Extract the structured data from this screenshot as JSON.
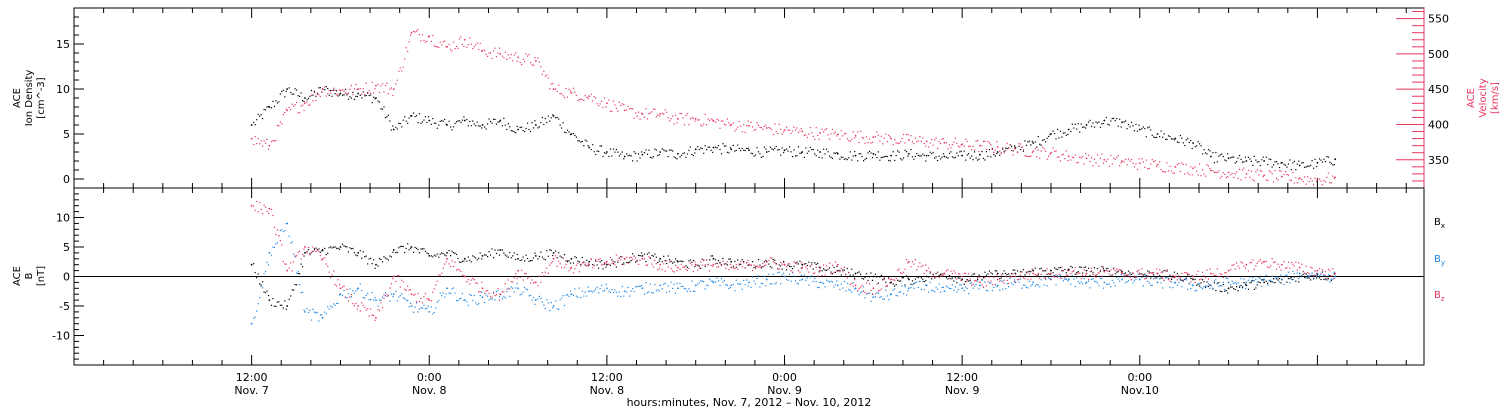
{
  "chart_data": [
    {
      "type": "scatter",
      "panel": "top",
      "ylabel_left": [
        "ACE",
        "Ion Density",
        "[cm^-3]"
      ],
      "ylabel_right": [
        "ACE",
        "Velocity",
        "[km/s]"
      ],
      "ylim_left": [
        -1,
        19
      ],
      "yticks_left": [
        0,
        5,
        10,
        15
      ],
      "ylim_right": [
        310,
        565
      ],
      "yticks_right": [
        350,
        400,
        450,
        500,
        550
      ],
      "colors": {
        "density": "#000000",
        "velocity": "#e8365e"
      },
      "series": [
        {
          "name": "Ion Density",
          "axis": "left",
          "color": "#000000",
          "x": [
            0.0,
            0.05,
            0.1,
            0.15,
            0.2,
            0.25,
            0.3,
            0.35,
            0.4,
            0.45,
            0.5,
            0.55,
            0.6,
            0.65,
            0.7,
            0.75,
            0.8,
            0.85,
            0.9,
            0.95,
            1.0,
            1.05,
            1.1,
            1.15,
            1.2,
            1.25,
            1.3,
            1.35,
            1.4,
            1.45,
            1.5,
            1.55,
            1.6,
            1.65,
            1.7,
            1.75,
            1.8,
            1.85,
            1.9,
            1.95,
            2.0,
            2.05,
            2.1,
            2.15,
            2.2,
            2.25,
            2.3,
            2.35,
            2.4,
            2.45,
            2.5,
            2.55,
            2.6,
            2.65,
            2.7,
            2.75,
            2.8,
            2.85,
            2.9,
            2.95,
            3.0,
            3.05
          ],
          "y": [
            6.0,
            8.0,
            10.0,
            9.0,
            10.0,
            9.5,
            9.5,
            9.0,
            5.5,
            7.0,
            6.5,
            6.0,
            6.5,
            6.0,
            6.5,
            5.5,
            6.0,
            7.0,
            5.0,
            3.5,
            3.0,
            2.5,
            2.7,
            3.0,
            2.8,
            3.3,
            3.5,
            3.3,
            3.2,
            3.0,
            3.2,
            3.0,
            3.0,
            2.8,
            2.6,
            2.8,
            2.6,
            2.8,
            2.6,
            2.5,
            2.6,
            2.7,
            3.0,
            3.5,
            4.0,
            5.0,
            5.5,
            6.0,
            6.5,
            6.3,
            5.5,
            5.0,
            4.5,
            4.0,
            2.5,
            2.3,
            2.0,
            2.0,
            1.8,
            1.5,
            1.8,
            2.2
          ]
        },
        {
          "name": "Velocity",
          "axis": "right",
          "color": "#e8365e",
          "x": [
            0.0,
            0.05,
            0.1,
            0.15,
            0.2,
            0.25,
            0.3,
            0.35,
            0.4,
            0.45,
            0.5,
            0.55,
            0.6,
            0.65,
            0.7,
            0.75,
            0.8,
            0.85,
            0.9,
            0.95,
            1.0,
            1.05,
            1.1,
            1.15,
            1.2,
            1.25,
            1.3,
            1.35,
            1.4,
            1.45,
            1.5,
            1.55,
            1.6,
            1.65,
            1.7,
            1.75,
            1.8,
            1.85,
            1.9,
            1.95,
            2.0,
            2.05,
            2.1,
            2.15,
            2.2,
            2.25,
            2.3,
            2.35,
            2.4,
            2.45,
            2.5,
            2.55,
            2.6,
            2.65,
            2.7,
            2.75,
            2.8,
            2.85,
            2.9,
            2.95,
            3.0,
            3.05
          ],
          "y": [
            380,
            370,
            420,
            430,
            450,
            448,
            450,
            455,
            450,
            530,
            525,
            510,
            520,
            505,
            500,
            495,
            490,
            450,
            445,
            440,
            430,
            420,
            415,
            415,
            408,
            408,
            405,
            400,
            398,
            395,
            392,
            390,
            388,
            386,
            384,
            382,
            380,
            378,
            376,
            374,
            372,
            370,
            368,
            366,
            362,
            360,
            355,
            352,
            350,
            348,
            345,
            343,
            340,
            338,
            335,
            332,
            330,
            328,
            326,
            324,
            322,
            325
          ]
        }
      ]
    },
    {
      "type": "scatter",
      "panel": "bottom",
      "ylabel": [
        "ACE",
        "B",
        "[nT]"
      ],
      "ylim": [
        -15,
        15
      ],
      "yticks": [
        -10,
        -5,
        0,
        5,
        10
      ],
      "zero_line": true,
      "legend": [
        "B_x",
        "B_y",
        "B_z"
      ],
      "colors": {
        "bx": "#000000",
        "by": "#1e88e5",
        "bz": "#e8365e"
      },
      "series": [
        {
          "name": "B_x",
          "color": "#000000",
          "x": [
            0.0,
            0.05,
            0.1,
            0.15,
            0.2,
            0.25,
            0.3,
            0.35,
            0.4,
            0.45,
            0.5,
            0.55,
            0.6,
            0.65,
            0.7,
            0.75,
            0.8,
            0.85,
            0.9,
            0.95,
            1.0,
            1.05,
            1.1,
            1.15,
            1.2,
            1.25,
            1.3,
            1.35,
            1.4,
            1.45,
            1.5,
            1.55,
            1.6,
            1.65,
            1.7,
            1.75,
            1.8,
            1.85,
            1.9,
            1.95,
            2.0,
            2.05,
            2.1,
            2.15,
            2.2,
            2.25,
            2.3,
            2.35,
            2.4,
            2.45,
            2.5,
            2.55,
            2.6,
            2.65,
            2.7,
            2.75,
            2.8,
            2.85,
            2.9,
            2.95,
            3.0,
            3.05
          ],
          "y": [
            2.0,
            -4.0,
            -5.0,
            4.0,
            4.5,
            5.0,
            4.0,
            2.0,
            4.5,
            5.0,
            3.5,
            4.0,
            3.0,
            3.5,
            4.5,
            3.0,
            3.5,
            4.0,
            3.0,
            2.5,
            2.0,
            3.0,
            3.5,
            3.0,
            2.5,
            2.0,
            3.0,
            2.5,
            2.0,
            2.5,
            2.0,
            2.0,
            1.5,
            1.0,
            0.5,
            0.0,
            -1.0,
            -0.5,
            0.0,
            0.5,
            -0.5,
            0.0,
            0.5,
            0.5,
            1.0,
            1.0,
            1.2,
            1.0,
            1.0,
            0.8,
            0.5,
            0.5,
            0.0,
            -0.5,
            -1.5,
            -2.0,
            -1.5,
            -1.0,
            -0.5,
            0.0,
            0.3,
            0.0
          ]
        },
        {
          "name": "B_y",
          "color": "#1e88e5",
          "x": [
            0.0,
            0.05,
            0.1,
            0.15,
            0.2,
            0.25,
            0.3,
            0.35,
            0.4,
            0.45,
            0.5,
            0.55,
            0.6,
            0.65,
            0.7,
            0.75,
            0.8,
            0.85,
            0.9,
            0.95,
            1.0,
            1.05,
            1.1,
            1.15,
            1.2,
            1.25,
            1.3,
            1.35,
            1.4,
            1.45,
            1.5,
            1.55,
            1.6,
            1.65,
            1.7,
            1.75,
            1.8,
            1.85,
            1.9,
            1.95,
            2.0,
            2.05,
            2.1,
            2.15,
            2.2,
            2.25,
            2.3,
            2.35,
            2.4,
            2.45,
            2.5,
            2.55,
            2.6,
            2.65,
            2.7,
            2.75,
            2.8,
            2.85,
            2.9,
            2.95,
            3.0,
            3.05
          ],
          "y": [
            -8.0,
            4.0,
            9.0,
            -6.0,
            -7.0,
            -3.0,
            -2.0,
            -4.0,
            -3.0,
            -5.0,
            -6.0,
            -2.0,
            -4.0,
            -3.5,
            -3.0,
            -2.0,
            -4.0,
            -5.0,
            -3.0,
            -2.5,
            -2.0,
            -2.5,
            -2.0,
            -1.5,
            -2.0,
            -1.5,
            -1.0,
            -1.5,
            -1.0,
            -0.5,
            0.0,
            -0.5,
            -1.0,
            -1.5,
            -2.0,
            -3.5,
            -3.0,
            -2.0,
            -1.5,
            -2.5,
            -2.0,
            -1.5,
            -1.5,
            -1.0,
            -1.0,
            -0.5,
            -0.5,
            -1.0,
            -1.0,
            -0.5,
            -0.5,
            -1.0,
            -1.0,
            -1.5,
            -1.5,
            -1.0,
            -1.0,
            -0.5,
            -0.5,
            0.5,
            0.5,
            0.0
          ]
        },
        {
          "name": "B_z",
          "color": "#e8365e",
          "x": [
            0.0,
            0.05,
            0.1,
            0.15,
            0.2,
            0.25,
            0.3,
            0.35,
            0.4,
            0.45,
            0.5,
            0.55,
            0.6,
            0.65,
            0.7,
            0.75,
            0.8,
            0.85,
            0.9,
            0.95,
            1.0,
            1.05,
            1.1,
            1.15,
            1.2,
            1.25,
            1.3,
            1.35,
            1.4,
            1.45,
            1.5,
            1.55,
            1.6,
            1.65,
            1.7,
            1.75,
            1.8,
            1.85,
            1.9,
            1.95,
            2.0,
            2.05,
            2.1,
            2.15,
            2.2,
            2.25,
            2.3,
            2.35,
            2.4,
            2.45,
            2.5,
            2.55,
            2.6,
            2.65,
            2.7,
            2.75,
            2.8,
            2.85,
            2.9,
            2.95,
            3.0,
            3.05
          ],
          "y": [
            12.0,
            11.5,
            1.0,
            5.0,
            3.0,
            -2.0,
            -5.0,
            -7.0,
            0.0,
            -3.0,
            -4.0,
            3.0,
            0.0,
            -2.0,
            -3.0,
            1.0,
            -1.0,
            3.0,
            1.5,
            2.0,
            2.5,
            3.0,
            3.0,
            2.0,
            1.5,
            2.0,
            2.0,
            1.5,
            2.0,
            2.5,
            2.0,
            1.5,
            1.0,
            2.0,
            -1.5,
            -2.0,
            -0.5,
            2.5,
            1.0,
            0.5,
            0.0,
            -1.0,
            -0.5,
            0.0,
            0.5,
            0.5,
            1.0,
            0.5,
            0.8,
            0.5,
            0.5,
            0.5,
            0.0,
            0.0,
            0.5,
            1.0,
            2.0,
            2.5,
            2.0,
            1.5,
            1.0,
            0.5
          ]
        }
      ]
    }
  ],
  "x_axis": {
    "range_days": [
      -0.5,
      3.3
    ],
    "major_ticks": [
      {
        "x": 0.0,
        "time": "12:00",
        "date": "Nov. 7"
      },
      {
        "x": 0.5,
        "time": "0:00",
        "date": "Nov. 8"
      },
      {
        "x": 1.0,
        "time": "12:00",
        "date": "Nov. 8"
      },
      {
        "x": 1.5,
        "time": "0:00",
        "date": "Nov. 9"
      },
      {
        "x": 2.0,
        "time": "12:00",
        "date": "Nov. 9"
      },
      {
        "x": 2.5,
        "time": "0:00",
        "date": "Nov.10"
      }
    ],
    "caption": "hours:minutes, Nov.  7, 2012 – Nov. 10, 2012"
  }
}
